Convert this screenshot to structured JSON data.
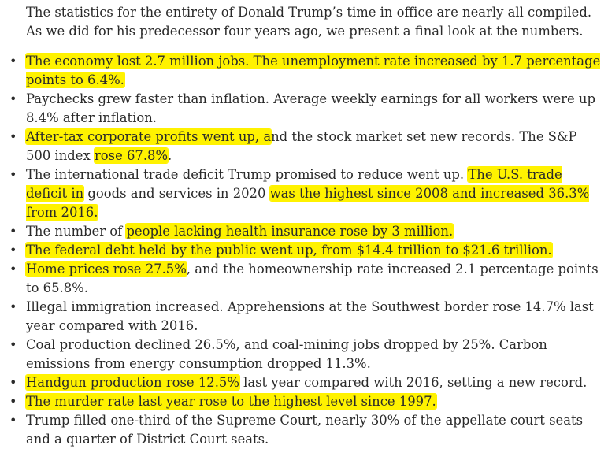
{
  "intro": "The statistics for the entirety of Donald Trump’s time in office are nearly all compiled. As we did for his predecessor four years ago, we present a final look at the numbers.",
  "colors": {
    "text": "#2a2a2a",
    "highlight": "#fff200",
    "background": "#ffffff"
  },
  "bullets": [
    {
      "segments": [
        {
          "text": "The economy lost 2.7 million jobs. The unemployment rate increased by 1.7 percentage points to 6.4%.",
          "highlight": true
        }
      ]
    },
    {
      "segments": [
        {
          "text": "Paychecks grew faster than inflation. Average weekly earnings for all workers were up 8.4% after inflation.",
          "highlight": false
        }
      ]
    },
    {
      "segments": [
        {
          "text": "After-tax corporate profits went up, a",
          "highlight": true
        },
        {
          "text": "nd the stock market set new records. The S&P 500 index ",
          "highlight": false
        },
        {
          "text": "rose 67.8%",
          "highlight": true
        },
        {
          "text": ".",
          "highlight": false
        }
      ]
    },
    {
      "segments": [
        {
          "text": "The international trade deficit Trump promised to reduce went up. ",
          "highlight": false
        },
        {
          "text": "The U.S. trade deficit in",
          "highlight": true
        },
        {
          "text": " goods and services in 2020 ",
          "highlight": false
        },
        {
          "text": "was the highest since 2008 and increased 36.3% from 2016.",
          "highlight": true
        }
      ]
    },
    {
      "segments": [
        {
          "text": "The number of ",
          "highlight": false
        },
        {
          "text": "people lacking health insurance rose by 3 million.",
          "highlight": true
        }
      ]
    },
    {
      "segments": [
        {
          "text": "The federal debt held by the public went up, from $14.4 trillion to $21.6 trillion.",
          "highlight": true
        }
      ]
    },
    {
      "segments": [
        {
          "text": "Home prices rose 27.5%",
          "highlight": true
        },
        {
          "text": ", and the homeownership rate increased 2.1 percentage points to 65.8%.",
          "highlight": false
        }
      ]
    },
    {
      "segments": [
        {
          "text": "Illegal immigration increased. Apprehensions at the Southwest border rose 14.7% last year compared with 2016.",
          "highlight": false
        }
      ]
    },
    {
      "segments": [
        {
          "text": "Coal production declined 26.5%, and coal-mining jobs dropped by 25%. Carbon emissions from energy consumption dropped 11.3%.",
          "highlight": false
        }
      ]
    },
    {
      "segments": [
        {
          "text": "Handgun production rose 12.5%",
          "highlight": true
        },
        {
          "text": " last year compared with 2016, setting a new record.",
          "highlight": false
        }
      ]
    },
    {
      "segments": [
        {
          "text": "The murder rate last year rose to the highest level since 1997.",
          "highlight": true
        }
      ]
    },
    {
      "segments": [
        {
          "text": "Trump filled one-third of the Supreme Court, nearly 30% of the appellate court seats and a quarter of District Court seats.",
          "highlight": false
        }
      ]
    }
  ]
}
